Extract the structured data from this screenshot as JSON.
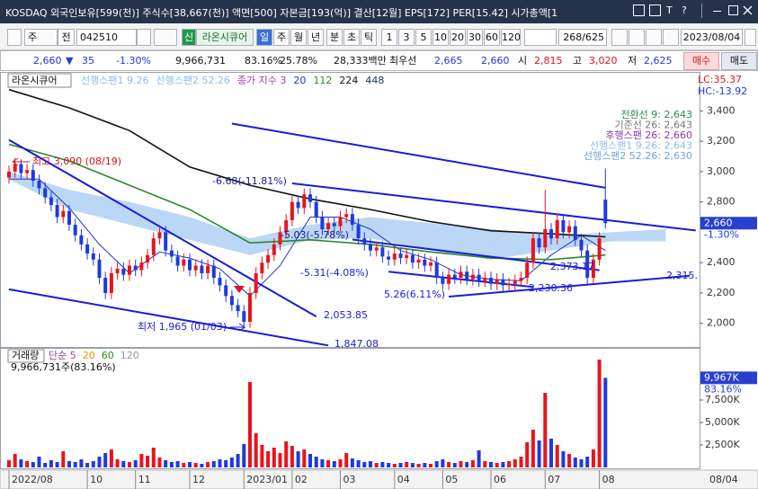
{
  "window": {
    "title": "KOSDAQ 외국인보유[599(천)] 주식수[38,667(천)] 액면[500] 자본금[193(억)] 결산[12월] EPS[172] PER[15.42] 시가총액[1",
    "tools": [
      "T",
      "?"
    ]
  },
  "toolbar": {
    "period": "주",
    "prev": "전",
    "code": "042510",
    "tag": "신",
    "name": "라온시큐어",
    "tabs": [
      "일",
      "주",
      "월",
      "년",
      "분",
      "초",
      "틱"
    ],
    "intervals": [
      "1",
      "3",
      "5",
      "10",
      "20",
      "30",
      "60",
      "120"
    ],
    "count": "268/625",
    "date": "2023/08/04"
  },
  "quote": {
    "price": "2,660",
    "arrow": "▼",
    "change": "35",
    "rate": "-1.30%",
    "volume": "9,966,731",
    "vol_ratio": "83.16%",
    "turnover": "25.78%",
    "amount": "28,333백만",
    "best_label": "최우선",
    "ask": "2,665",
    "bid": "2,660",
    "open_label": "시",
    "open": "2,815",
    "high_label": "고",
    "high": "3,020",
    "low_label": "저",
    "low": "2,625",
    "buy": "매수",
    "sell": "매도"
  },
  "chart_data": {
    "type": "candlestick",
    "categories": [
      "2022/08",
      null,
      null,
      null,
      null,
      null,
      null,
      null,
      null,
      null,
      null,
      null,
      null,
      "10",
      null,
      null,
      null,
      null,
      null,
      null,
      null,
      "11",
      null,
      null,
      null,
      null,
      null,
      null,
      null,
      null,
      "12",
      null,
      null,
      null,
      null,
      null,
      null,
      null,
      null,
      "2023/01",
      null,
      null,
      null,
      null,
      null,
      null,
      null,
      "02",
      null,
      null,
      null,
      null,
      null,
      null,
      null,
      "03",
      null,
      null,
      null,
      null,
      null,
      null,
      null,
      null,
      "04",
      null,
      null,
      null,
      null,
      null,
      null,
      null,
      "05",
      null,
      null,
      null,
      null,
      null,
      null,
      null,
      "06",
      null,
      null,
      null,
      null,
      null,
      null,
      null,
      null,
      "07",
      null,
      null,
      null,
      null,
      null,
      null,
      null,
      null,
      "08",
      null
    ],
    "x_end_label": "08/04",
    "series": [
      {
        "name": "라온시큐어",
        "up_color": "#e8141e",
        "down_color": "#1e3adc",
        "open": [
          2960,
          3000,
          3050,
          2990,
          3010,
          2940,
          2890,
          2830,
          2780,
          2700,
          2740,
          2650,
          2580,
          2520,
          2460,
          2420,
          2300,
          2200,
          2330,
          2360,
          2320,
          2380,
          2350,
          2400,
          2450,
          2560,
          2600,
          2480,
          2440,
          2380,
          2420,
          2350,
          2380,
          2330,
          2380,
          2300,
          2250,
          2180,
          2120,
          2080,
          2010,
          2200,
          2330,
          2400,
          2450,
          2520,
          2600,
          2680,
          2800,
          2760,
          2850,
          2800,
          2700,
          2620,
          2660,
          2640,
          2700,
          2720,
          2650,
          2560,
          2520,
          2480,
          2500,
          2440,
          2420,
          2460,
          2430,
          2450,
          2400,
          2420,
          2380,
          2400,
          2300,
          2260,
          2320,
          2300,
          2340,
          2290,
          2320,
          2280,
          2300,
          2260,
          2290,
          2250,
          2260,
          2280,
          2300,
          2400,
          2560,
          2500,
          2620,
          2560,
          2680,
          2600,
          2640,
          2550,
          2480,
          2300,
          2420,
          2815
        ],
        "high": [
          3040,
          3090,
          3080,
          3050,
          3050,
          2980,
          2930,
          2870,
          2820,
          2780,
          2780,
          2690,
          2620,
          2560,
          2500,
          2460,
          2340,
          2370,
          2400,
          2400,
          2420,
          2420,
          2440,
          2490,
          2600,
          2640,
          2640,
          2520,
          2480,
          2460,
          2460,
          2420,
          2420,
          2420,
          2420,
          2340,
          2290,
          2220,
          2160,
          2120,
          2240,
          2370,
          2440,
          2490,
          2560,
          2640,
          2720,
          2840,
          2840,
          2890,
          2890,
          2840,
          2740,
          2700,
          2700,
          2740,
          2760,
          2760,
          2690,
          2600,
          2560,
          2540,
          2540,
          2480,
          2500,
          2500,
          2490,
          2490,
          2460,
          2460,
          2440,
          2440,
          2340,
          2360,
          2360,
          2380,
          2380,
          2360,
          2360,
          2340,
          2340,
          2330,
          2330,
          2300,
          2320,
          2340,
          2440,
          2600,
          2600,
          2880,
          2660,
          2720,
          2720,
          2680,
          2680,
          2590,
          2520,
          2460,
          2600,
          3020
        ],
        "low": [
          2920,
          2960,
          2950,
          2950,
          2900,
          2850,
          2790,
          2740,
          2660,
          2660,
          2610,
          2540,
          2480,
          2420,
          2380,
          2260,
          2160,
          2160,
          2290,
          2280,
          2280,
          2310,
          2310,
          2360,
          2410,
          2520,
          2440,
          2400,
          2340,
          2340,
          2310,
          2310,
          2290,
          2290,
          2260,
          2210,
          2140,
          2080,
          2040,
          1965,
          1970,
          2160,
          2290,
          2360,
          2410,
          2480,
          2560,
          2640,
          2720,
          2720,
          2760,
          2660,
          2580,
          2580,
          2600,
          2600,
          2660,
          2610,
          2520,
          2480,
          2440,
          2440,
          2400,
          2380,
          2380,
          2390,
          2390,
          2360,
          2360,
          2340,
          2340,
          2260,
          2220,
          2220,
          2260,
          2260,
          2250,
          2250,
          2240,
          2240,
          2220,
          2220,
          2210,
          2210,
          2220,
          2240,
          2260,
          2360,
          2460,
          2460,
          2520,
          2520,
          2560,
          2560,
          2510,
          2440,
          2260,
          2260,
          2380,
          2625
        ],
        "close": [
          3000,
          3050,
          2990,
          3010,
          2940,
          2890,
          2830,
          2780,
          2700,
          2740,
          2650,
          2580,
          2520,
          2460,
          2420,
          2300,
          2200,
          2330,
          2360,
          2320,
          2380,
          2350,
          2400,
          2450,
          2560,
          2600,
          2480,
          2440,
          2380,
          2420,
          2350,
          2380,
          2330,
          2380,
          2300,
          2250,
          2180,
          2120,
          2080,
          2010,
          2200,
          2330,
          2400,
          2450,
          2520,
          2600,
          2680,
          2800,
          2760,
          2850,
          2800,
          2700,
          2620,
          2660,
          2640,
          2700,
          2720,
          2650,
          2560,
          2520,
          2480,
          2500,
          2440,
          2420,
          2460,
          2430,
          2450,
          2400,
          2420,
          2380,
          2400,
          2300,
          2260,
          2320,
          2300,
          2340,
          2290,
          2320,
          2280,
          2300,
          2260,
          2290,
          2250,
          2260,
          2280,
          2300,
          2400,
          2560,
          2500,
          2620,
          2560,
          2680,
          2600,
          2640,
          2550,
          2480,
          2300,
          2420,
          2560,
          2660
        ]
      }
    ],
    "ylim": [
      1850,
      3645
    ],
    "yticks": [
      {
        "value": 2000,
        "label": "2,000"
      },
      {
        "value": 2200,
        "label": "2,200"
      },
      {
        "value": 2400,
        "label": "2,400"
      },
      {
        "value": 2800,
        "label": "2,800"
      },
      {
        "value": 3000,
        "label": "3,000"
      },
      {
        "value": 3200,
        "label": "3,200"
      },
      {
        "value": 3400,
        "label": "3,400"
      }
    ],
    "grid": false,
    "last_label": "2,660",
    "change_label": "-1.30%",
    "lc_label": "LC:35.37",
    "hc_label": "HC:-13.92",
    "cloud": [
      {
        "name": "선행스팬1 9.26",
        "color": "#a9cdf2",
        "x": [
          0,
          10,
          20,
          30,
          40,
          50,
          60,
          70,
          80,
          90,
          100,
          109
        ],
        "values": [
          3000,
          2880,
          2800,
          2700,
          2560,
          2650,
          2700,
          2660,
          2620,
          2580,
          2600,
          2620
        ]
      },
      {
        "name": "선행스팬2 52.26",
        "color": "#8fb8e8",
        "x": [
          0,
          10,
          20,
          30,
          40,
          50,
          60,
          70,
          80,
          90,
          100,
          109
        ],
        "values": [
          2950,
          2750,
          2650,
          2550,
          2450,
          2550,
          2560,
          2480,
          2420,
          2480,
          2540,
          2540
        ]
      }
    ],
    "ma_label": "종가 지수 3",
    "ma": [
      {
        "name": "20",
        "color": "#2233cc",
        "x": [
          0,
          5,
          10,
          15,
          20,
          25,
          30,
          35,
          40,
          45,
          50,
          55,
          60,
          65,
          70,
          75,
          80,
          85,
          90,
          95,
          99
        ],
        "values": [
          2950,
          2950,
          2760,
          2520,
          2330,
          2470,
          2430,
          2360,
          2180,
          2380,
          2700,
          2700,
          2620,
          2480,
          2420,
          2320,
          2290,
          2280,
          2450,
          2580,
          2480
        ]
      },
      {
        "name": "112",
        "color": "#2a8a2a",
        "x": [
          0,
          10,
          20,
          30,
          40,
          50,
          60,
          70,
          80,
          90,
          99
        ],
        "values": [
          3180,
          3070,
          2910,
          2750,
          2530,
          2550,
          2520,
          2470,
          2430,
          2420,
          2450
        ]
      },
      {
        "name": "224",
        "color": "#111111",
        "x": [
          0,
          10,
          20,
          30,
          40,
          50,
          60,
          70,
          80,
          90,
          99
        ],
        "values": [
          3540,
          3420,
          3270,
          3030,
          2910,
          2820,
          2750,
          2670,
          2610,
          2590,
          2570
        ]
      }
    ],
    "ma_extra": "448",
    "ichimoku_labels": [
      {
        "text": "전환선 9: 2,643",
        "color": "#2c8a5a"
      },
      {
        "text": "기준선 26: 2,643",
        "color": "#777777"
      },
      {
        "text": "후행스팬 26: 2,660",
        "color": "#8b3aa0"
      },
      {
        "text": "선행스팬1 9.26: 2,643",
        "color": "#8fbbe8"
      },
      {
        "text": "선행스팬2 52.26: 2,630",
        "color": "#6fa3da"
      }
    ],
    "trend_color": "#1a1adc",
    "trendlines": [
      {
        "x": [
          37,
          99
        ],
        "values": [
          3316,
          2893
        ]
      },
      {
        "x": [
          0,
          51
        ],
        "values": [
          3209,
          2045
        ]
      },
      {
        "x": [
          0,
          53
        ],
        "values": [
          2224,
          1854
        ]
      },
      {
        "x": [
          47,
          114
        ],
        "values": [
          2922,
          2612
        ]
      },
      {
        "x": [
          57,
          98
        ],
        "values": [
          2552,
          2350
        ]
      },
      {
        "x": [
          63,
          87
        ],
        "values": [
          2340,
          2240
        ]
      },
      {
        "x": [
          73,
          113
        ],
        "values": [
          2176,
          2313
        ]
      }
    ],
    "annotations": [
      "최고 3,090 (08/19)",
      "-6.68(-11.81%)",
      "-5.03(-5.78%)",
      "-5.31(-4.08%)",
      "5.26(6.11%)",
      "2,373.17",
      "2,230.36",
      "2,315.",
      "2,053.85",
      "1,847.08",
      "최저 1,965 (01/03)"
    ],
    "volume": {
      "name": "거래량",
      "ma_label": "단순 5",
      "ma_periods": [
        {
          "name": "20",
          "color": "#e09a00"
        },
        {
          "name": "60",
          "color": "#2a8a2a"
        },
        {
          "name": "120",
          "color": "#999999"
        }
      ],
      "summary": "9,966,731주(83.16%)",
      "last_label": "9,967K",
      "pct_label": "83.16%",
      "values": [
        800000,
        1500000,
        900000,
        700000,
        600000,
        1200000,
        500000,
        800000,
        600000,
        1800000,
        700000,
        600000,
        900000,
        500000,
        700000,
        1200000,
        1600000,
        2000000,
        900000,
        700000,
        600000,
        800000,
        1500000,
        1300000,
        2200000,
        1100000,
        800000,
        600000,
        700000,
        500000,
        600000,
        500000,
        400000,
        600000,
        700000,
        900000,
        800000,
        1100000,
        1500000,
        2600000,
        9500000,
        3800000,
        2500000,
        1800000,
        2200000,
        1600000,
        2900000,
        2400000,
        1800000,
        2000000,
        1500000,
        1200000,
        900000,
        800000,
        700000,
        900000,
        1600000,
        1000000,
        800000,
        600000,
        700000,
        500000,
        600000,
        500000,
        400000,
        500000,
        600000,
        500000,
        400000,
        500000,
        400000,
        700000,
        900000,
        600000,
        500000,
        700000,
        600000,
        800000,
        1900000,
        700000,
        600000,
        500000,
        600000,
        700000,
        900000,
        1200000,
        2800000,
        4200000,
        3000000,
        8300000,
        3200000,
        2500000,
        1800000,
        1500000,
        1100000,
        900000,
        1200000,
        2000000,
        12000000,
        9966731
      ],
      "ylim": [
        0,
        13200000
      ],
      "yticks": [
        {
          "value": 2500000,
          "label": "2,500K"
        },
        {
          "value": 5000000,
          "label": "5,000K"
        },
        {
          "value": 7500000,
          "label": "7,500K"
        }
      ]
    }
  }
}
